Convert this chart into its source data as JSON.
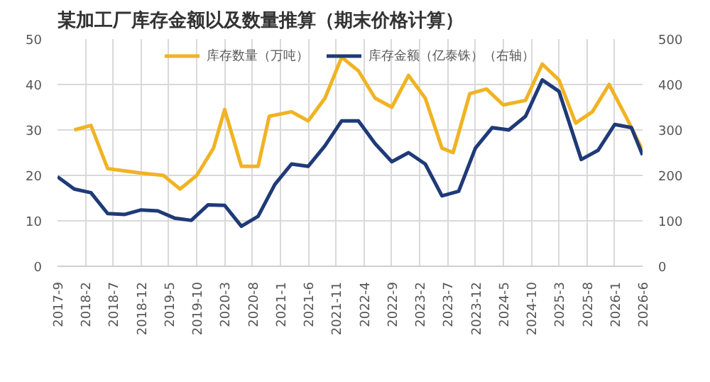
{
  "chart_data": {
    "type": "line",
    "title": "某加工厂库存金额以及数量推算（期末价格计算）",
    "xlim": [
      "2017-09",
      "2026-06"
    ],
    "xticks": [
      {
        "value": "2017-09",
        "label": "2017-9"
      },
      {
        "value": "2018-02",
        "label": "2018-2"
      },
      {
        "value": "2018-07",
        "label": "2018-7"
      },
      {
        "value": "2018-12",
        "label": "2018-12"
      },
      {
        "value": "2019-05",
        "label": "2019-5"
      },
      {
        "value": "2019-10",
        "label": "2019-10"
      },
      {
        "value": "2020-03",
        "label": "2020-3"
      },
      {
        "value": "2020-08",
        "label": "2020-8"
      },
      {
        "value": "2021-01",
        "label": "2021-1"
      },
      {
        "value": "2021-06",
        "label": "2021-6"
      },
      {
        "value": "2021-11",
        "label": "2021-11"
      },
      {
        "value": "2022-04",
        "label": "2022-4"
      },
      {
        "value": "2022-09",
        "label": "2022-9"
      },
      {
        "value": "2023-02",
        "label": "2023-2"
      },
      {
        "value": "2023-07",
        "label": "2023-7"
      },
      {
        "value": "2023-12",
        "label": "2023-12"
      },
      {
        "value": "2024-05",
        "label": "2024-5"
      },
      {
        "value": "2024-10",
        "label": "2024-10"
      },
      {
        "value": "2025-03",
        "label": "2025-3"
      },
      {
        "value": "2025-08",
        "label": "2025-8"
      },
      {
        "value": "2026-01",
        "label": "2026-1"
      },
      {
        "value": "2026-06",
        "label": "2026-6"
      }
    ],
    "ylim": [
      0,
      50
    ],
    "yticks": [
      0,
      10,
      20,
      30,
      40,
      50
    ],
    "y2lim": [
      0,
      500
    ],
    "y2ticks": [
      0,
      100,
      200,
      300,
      400,
      500
    ],
    "grid": true,
    "legend": "top",
    "series": [
      {
        "name": "库存数量（万吨）",
        "color": "#f0b323",
        "x": [
          "2017-12",
          "2018-03",
          "2018-06",
          "2018-12",
          "2019-04",
          "2019-07",
          "2019-10",
          "2020-01",
          "2020-03",
          "2020-06",
          "2020-09",
          "2020-11",
          "2021-03",
          "2021-06",
          "2021-09",
          "2021-12",
          "2022-03",
          "2022-06",
          "2022-09",
          "2022-12",
          "2023-03",
          "2023-06",
          "2023-08",
          "2023-11",
          "2024-02",
          "2024-05",
          "2024-09",
          "2024-12",
          "2025-03",
          "2025-06",
          "2025-09",
          "2025-12",
          "2026-03",
          "2026-06"
        ],
        "values": [
          30,
          31,
          21.5,
          20.5,
          20,
          17,
          20,
          26,
          34.5,
          22,
          22,
          33,
          34,
          32,
          37,
          46,
          43,
          37,
          35,
          42,
          37,
          26,
          25,
          38,
          39,
          35.5,
          36.5,
          44.5,
          41,
          31.5,
          34,
          40,
          33,
          25.5
        ]
      },
      {
        "name": "库存金额（亿泰铢）（右轴）",
        "color": "#1f3a78",
        "axis": "y2",
        "x": [
          "2017-09",
          "2017-12",
          "2018-03",
          "2018-06",
          "2018-09",
          "2018-12",
          "2019-03",
          "2019-06",
          "2019-09",
          "2019-12",
          "2020-03",
          "2020-06",
          "2020-09",
          "2020-12",
          "2021-03",
          "2021-06",
          "2021-09",
          "2021-12",
          "2022-03",
          "2022-06",
          "2022-09",
          "2022-12",
          "2023-03",
          "2023-06",
          "2023-09",
          "2023-12",
          "2024-03",
          "2024-06",
          "2024-09",
          "2024-12",
          "2025-03",
          "2025-07",
          "2025-10",
          "2026-01",
          "2026-04",
          "2026-06"
        ],
        "values": [
          197,
          170,
          162,
          116,
          114,
          124,
          122,
          106,
          101,
          135,
          134,
          88,
          110,
          180,
          225,
          220,
          265,
          320,
          320,
          270,
          230,
          250,
          225,
          155,
          165,
          260,
          305,
          300,
          330,
          410,
          385,
          235,
          255,
          312,
          305,
          245
        ]
      }
    ]
  }
}
